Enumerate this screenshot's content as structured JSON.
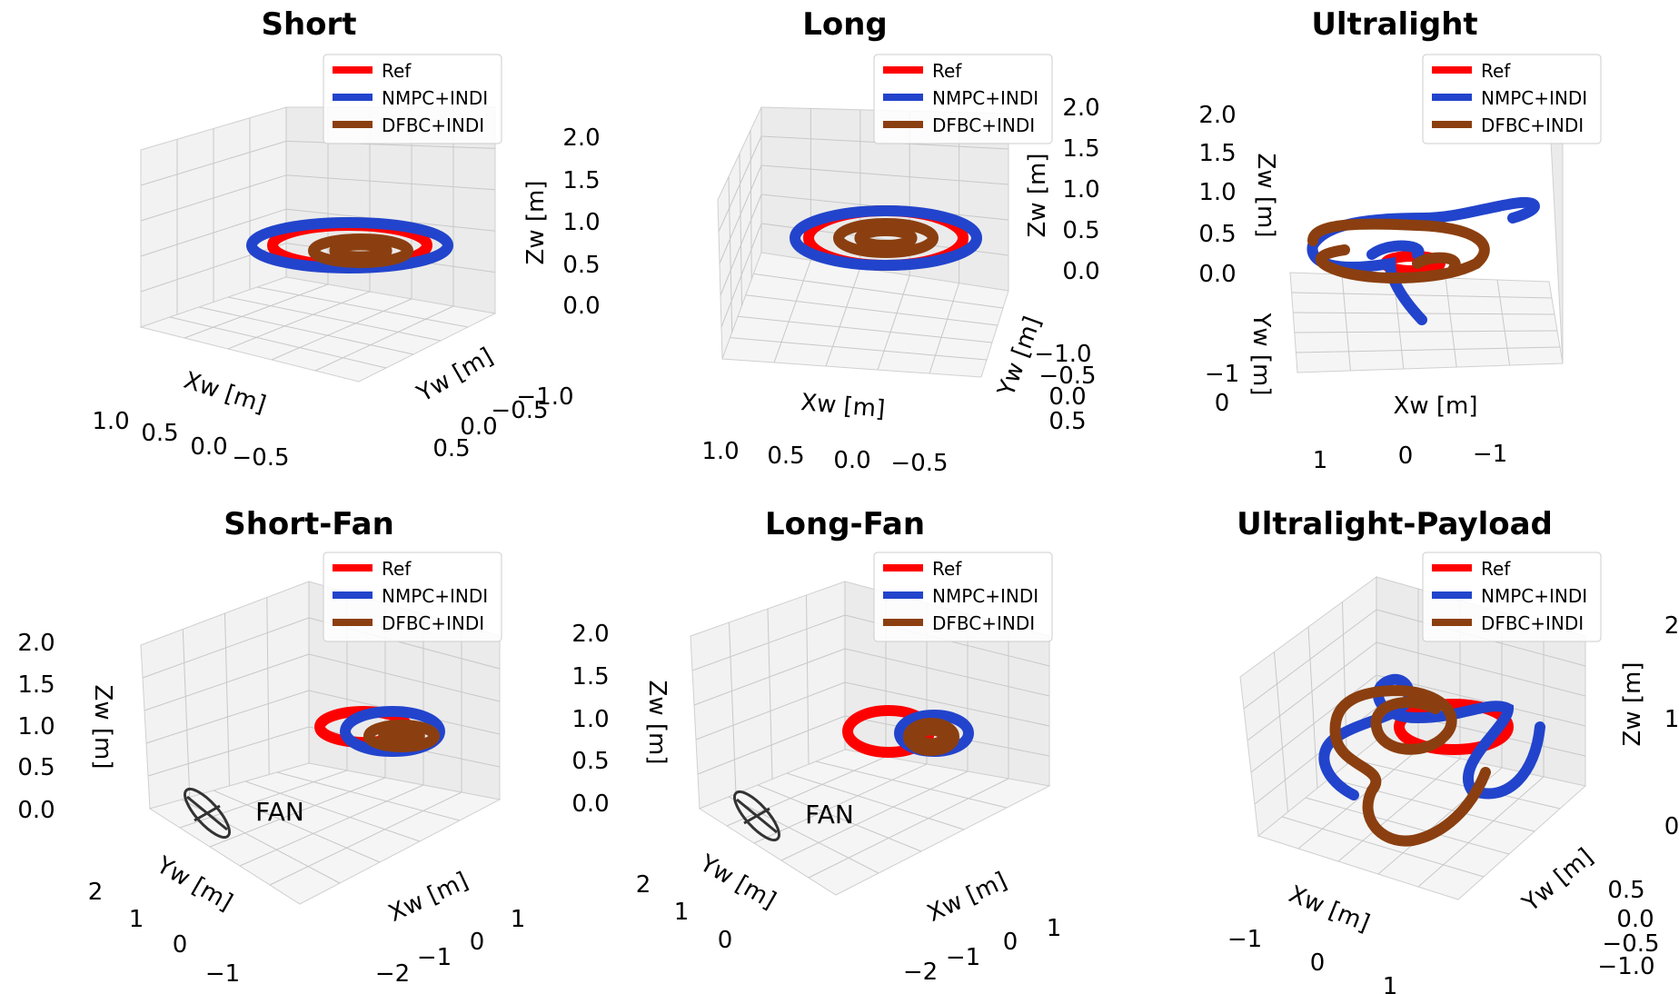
{
  "figure": {
    "legend_labels": [
      "Ref",
      "NMPC+INDI",
      "DFBC+INDI"
    ],
    "fan_label": "FAN"
  },
  "chart_data": [
    {
      "type": "line3d",
      "title": "Short",
      "axes": {
        "x": "Xw [m]",
        "y": "Yw [m]",
        "z": "Zw [m]"
      },
      "xticks": [
        "1.0",
        "0.5",
        "0.0",
        "−0.5"
      ],
      "yticks": [
        "−1.0",
        "−0.5",
        "0.0",
        "0.5"
      ],
      "zticks": [
        "0.0",
        "0.5",
        "1.0",
        "1.5",
        "2.0"
      ],
      "legend": "top-right",
      "series": [
        {
          "name": "Ref",
          "color": "#ff0000",
          "shape": "ellipse",
          "rx": 85,
          "ry": 22,
          "cx": 0,
          "cy": 0
        },
        {
          "name": "NMPC+INDI",
          "color": "#2244cc",
          "shape": "ellipse",
          "rx": 108,
          "ry": 25,
          "cx": 0,
          "cy": 0
        },
        {
          "name": "DFBC+INDI",
          "color": "#8b3f10",
          "shape": "ellipse",
          "rx": 52,
          "ry": 13,
          "cx": 12,
          "cy": 6
        }
      ]
    },
    {
      "type": "line3d",
      "title": "Long",
      "axes": {
        "x": "Xw [m]",
        "y": "Yw [m]",
        "z": "Zw [m]"
      },
      "xticks": [
        "1.0",
        "0.5",
        "0.0",
        "−0.5"
      ],
      "yticks": [
        "−1.0",
        "−0.5",
        "0.0",
        "0.5"
      ],
      "zticks": [
        "0.0",
        "0.5",
        "1.0",
        "1.5",
        "2.0"
      ],
      "legend": "top-right",
      "series": [
        {
          "name": "Ref",
          "color": "#ff0000",
          "shape": "ellipse",
          "rx": 85,
          "ry": 30,
          "cx": 0,
          "cy": 0
        },
        {
          "name": "NMPC+INDI",
          "color": "#2244cc",
          "shape": "ellipse",
          "rx": 100,
          "ry": 30,
          "cx": 0,
          "cy": 0
        },
        {
          "name": "DFBC+INDI",
          "color": "#8b3f10",
          "shape": "ellipse",
          "rx": 52,
          "ry": 16,
          "cx": 0,
          "cy": 0
        }
      ]
    },
    {
      "type": "line3d",
      "title": "Ultralight",
      "axes": {
        "x": "Xw [m]",
        "y": "Yw [m]",
        "z": "Zw [m]"
      },
      "xticks": [
        "1",
        "0",
        "−1"
      ],
      "yticks": [
        "−1",
        "0"
      ],
      "zticks": [
        "0.0",
        "0.5",
        "1.0",
        "1.5",
        "2.0"
      ],
      "legend": "top-right",
      "series": [
        {
          "name": "Ref",
          "color": "#ff0000",
          "shape": "ellipse",
          "rx": 30,
          "ry": 8,
          "cx": 0,
          "cy": 0
        },
        {
          "name": "NMPC+INDI",
          "color": "#2244cc",
          "shape": "path",
          "rx": 0,
          "ry": 0,
          "cx": 0,
          "cy": 0
        },
        {
          "name": "DFBC+INDI",
          "color": "#8b3f10",
          "shape": "path",
          "rx": 0,
          "ry": 0,
          "cx": 0,
          "cy": 0
        }
      ]
    },
    {
      "type": "line3d",
      "title": "Short-Fan",
      "axes": {
        "x": "Xw [m]",
        "y": "Yw [m]",
        "z": "Zw [m]"
      },
      "xticks": [
        "−2",
        "−1",
        "0",
        "1"
      ],
      "yticks": [
        "2",
        "1",
        "0",
        "−1"
      ],
      "zticks": [
        "0.0",
        "0.5",
        "1.0",
        "1.5",
        "2.0"
      ],
      "legend": "top-right",
      "series": [
        {
          "name": "Ref",
          "color": "#ff0000",
          "shape": "ellipse",
          "rx": 48,
          "ry": 17,
          "cx": -20,
          "cy": 0
        },
        {
          "name": "NMPC+INDI",
          "color": "#2244cc",
          "shape": "ellipse",
          "rx": 52,
          "ry": 22,
          "cx": 12,
          "cy": 5
        },
        {
          "name": "DFBC+INDI",
          "color": "#8b3f10",
          "shape": "ellipse",
          "rx": 36,
          "ry": 12,
          "cx": 22,
          "cy": 10
        }
      ]
    },
    {
      "type": "line3d",
      "title": "Long-Fan",
      "axes": {
        "x": "Xw [m]",
        "y": "Yw [m]",
        "z": "Zw [m]"
      },
      "xticks": [
        "−2",
        "−1",
        "0",
        "1"
      ],
      "yticks": [
        "2",
        "1",
        "0"
      ],
      "zticks": [
        "0.0",
        "0.5",
        "1.0",
        "1.5",
        "2.0"
      ],
      "legend": "top-right",
      "series": [
        {
          "name": "Ref",
          "color": "#ff0000",
          "shape": "ellipse",
          "rx": 45,
          "ry": 23,
          "cx": -22,
          "cy": 0
        },
        {
          "name": "NMPC+INDI",
          "color": "#2244cc",
          "shape": "ellipse",
          "rx": 38,
          "ry": 20,
          "cx": 28,
          "cy": 2
        },
        {
          "name": "DFBC+INDI",
          "color": "#8b3f10",
          "shape": "ellipse",
          "rx": 25,
          "ry": 15,
          "cx": 25,
          "cy": 6
        }
      ]
    },
    {
      "type": "line3d",
      "title": "Ultralight-Payload",
      "axes": {
        "x": "Xw [m]",
        "y": "Yw [m]",
        "z": "Zw [m]"
      },
      "xticks": [
        "−1",
        "0",
        "1"
      ],
      "yticks": [
        "−1.0",
        "−0.5",
        "0.0",
        "0.5"
      ],
      "zticks": [
        "0",
        "1",
        "2"
      ],
      "legend": "top-right",
      "series": [
        {
          "name": "Ref",
          "color": "#ff0000",
          "shape": "ellipse",
          "rx": 60,
          "ry": 25,
          "cx": 20,
          "cy": 0
        },
        {
          "name": "NMPC+INDI",
          "color": "#2244cc",
          "shape": "path",
          "rx": 0,
          "ry": 0,
          "cx": 0,
          "cy": 0
        },
        {
          "name": "DFBC+INDI",
          "color": "#8b3f10",
          "shape": "path",
          "rx": 0,
          "ry": 0,
          "cx": 0,
          "cy": 0
        }
      ]
    }
  ]
}
